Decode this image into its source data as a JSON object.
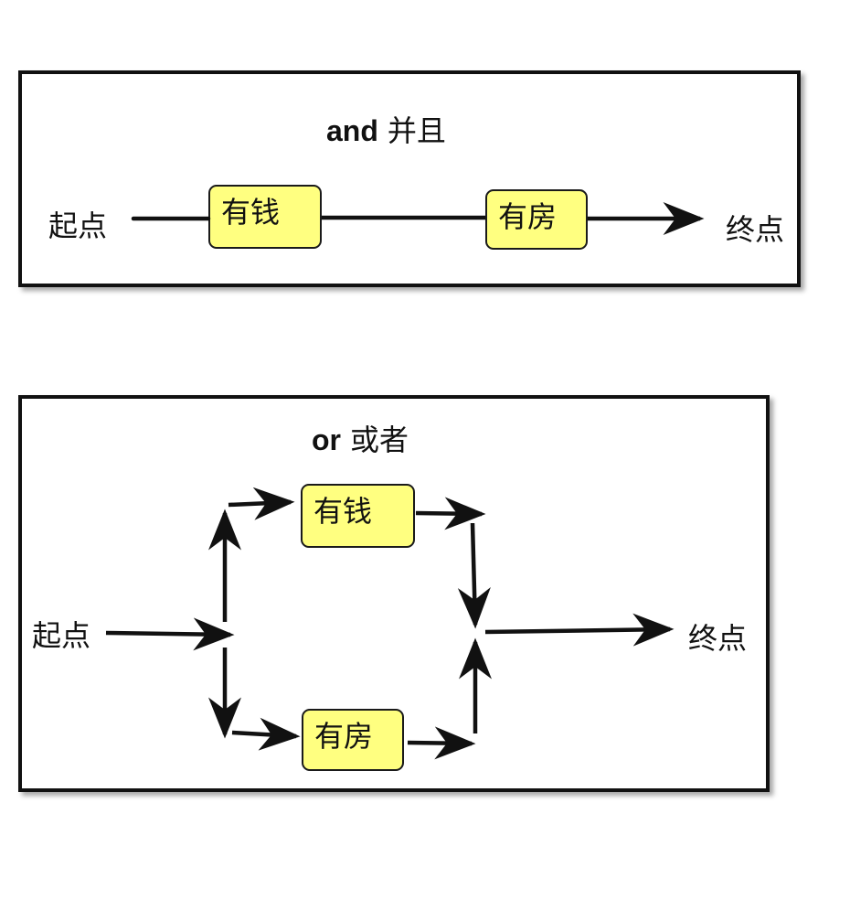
{
  "and_diagram": {
    "title_keyword": "and",
    "title_text": "并且",
    "start_label": "起点",
    "end_label": "终点",
    "node_money": "有钱",
    "node_house": "有房"
  },
  "or_diagram": {
    "title_keyword": "or",
    "title_text": "或者",
    "start_label": "起点",
    "end_label": "终点",
    "node_money": "有钱",
    "node_house": "有房"
  },
  "colors": {
    "node_fill": "#ffff80",
    "stroke": "#111111"
  }
}
